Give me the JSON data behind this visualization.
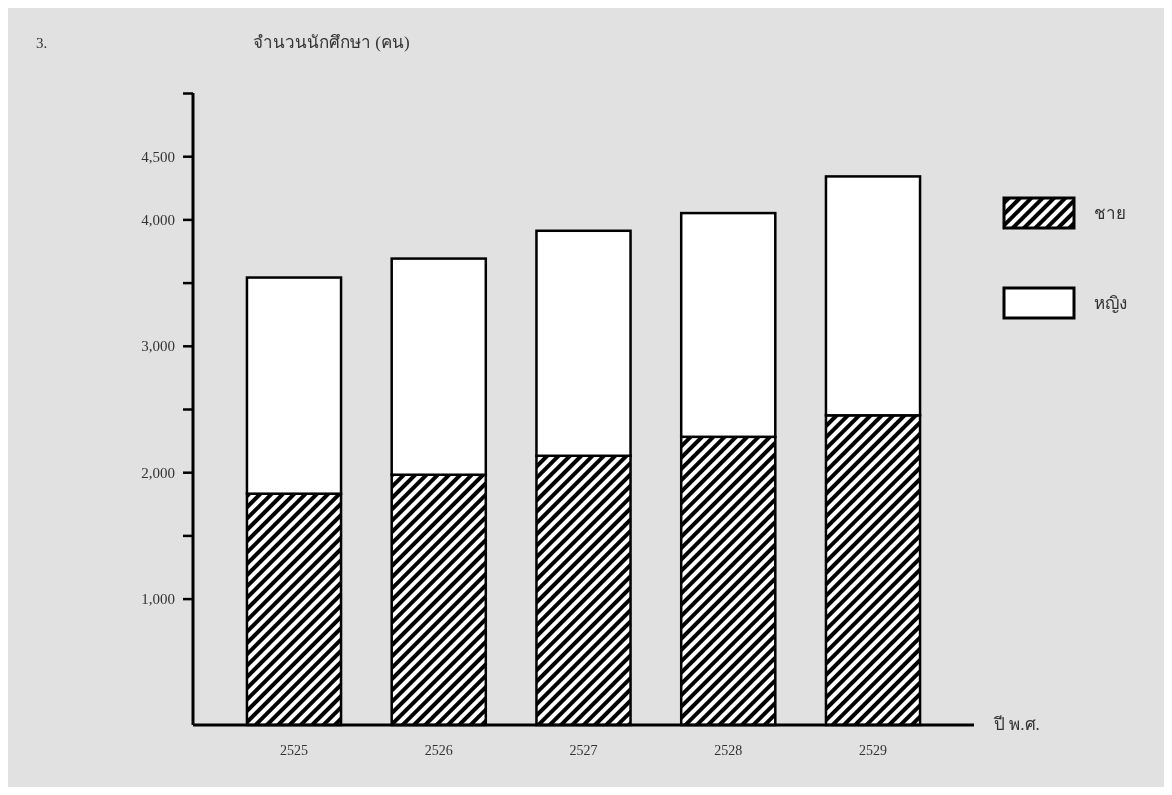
{
  "chart_data": {
    "type": "bar",
    "stacked": true,
    "ylabel": "จำนวนนักศึกษา (คน)",
    "xlabel": "ปี พ.ศ.",
    "annotations": [
      "3."
    ],
    "categories": [
      "2525",
      "2526",
      "2527",
      "2528",
      "2529"
    ],
    "series": [
      {
        "name": "ชาย",
        "color": "#000000",
        "values": [
          1830,
          1980,
          2130,
          2280,
          2450
        ]
      },
      {
        "name": "หญิง",
        "color": "#ffffff",
        "values": [
          1710,
          1710,
          1780,
          1770,
          1890
        ]
      }
    ],
    "ylim": [
      0,
      5000
    ],
    "yticks": [
      {
        "value": 1000,
        "label": "1,000"
      },
      {
        "value": 1500,
        "label": null
      },
      {
        "value": 2000,
        "label": "2,000"
      },
      {
        "value": 2500,
        "label": null
      },
      {
        "value": 3000,
        "label": "3,000"
      },
      {
        "value": 3500,
        "label": null
      },
      {
        "value": 4000,
        "label": "4,000"
      },
      {
        "value": 4500,
        "label": "4,500"
      },
      {
        "value": 5000,
        "label": null
      }
    ],
    "grid": false,
    "legend": "right"
  }
}
